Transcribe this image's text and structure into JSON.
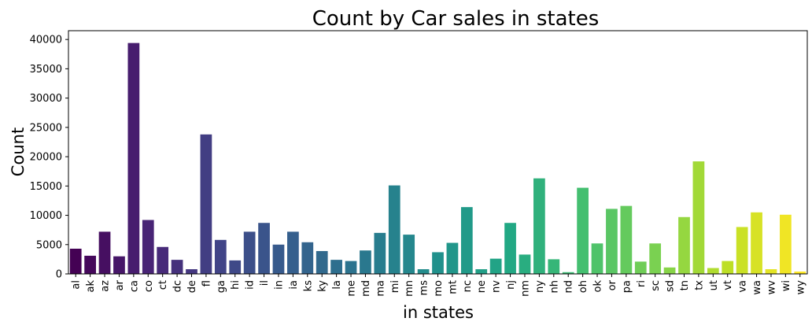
{
  "chart_data": {
    "type": "bar",
    "title": "Count by Car sales in states",
    "xlabel": "in states",
    "ylabel": "Count",
    "ylim": [
      0,
      41500
    ],
    "yticks": [
      0,
      5000,
      10000,
      15000,
      20000,
      25000,
      30000,
      35000,
      40000
    ],
    "categories": [
      "al",
      "ak",
      "az",
      "ar",
      "ca",
      "co",
      "ct",
      "dc",
      "de",
      "fl",
      "ga",
      "hi",
      "id",
      "il",
      "in",
      "ia",
      "ks",
      "ky",
      "la",
      "me",
      "md",
      "ma",
      "mi",
      "mn",
      "ms",
      "mo",
      "mt",
      "nc",
      "ne",
      "nv",
      "nj",
      "nm",
      "ny",
      "nh",
      "nd",
      "oh",
      "ok",
      "or",
      "pa",
      "ri",
      "sc",
      "sd",
      "tn",
      "tx",
      "ut",
      "vt",
      "va",
      "wa",
      "wv",
      "wi",
      "wy"
    ],
    "values": [
      4300,
      3100,
      7200,
      3000,
      39400,
      9200,
      4600,
      2400,
      800,
      23800,
      5800,
      2300,
      7200,
      8700,
      5000,
      7200,
      5400,
      3900,
      2400,
      2200,
      4000,
      7000,
      15100,
      6700,
      800,
      3700,
      5300,
      11400,
      800,
      2600,
      8700,
      3300,
      16300,
      2500,
      300,
      14700,
      5200,
      11100,
      11600,
      2100,
      5200,
      1100,
      9700,
      19200,
      1000,
      2200,
      8000,
      10500,
      800,
      10100,
      400
    ],
    "colormap": "viridis",
    "grid": false,
    "legend": false
  }
}
